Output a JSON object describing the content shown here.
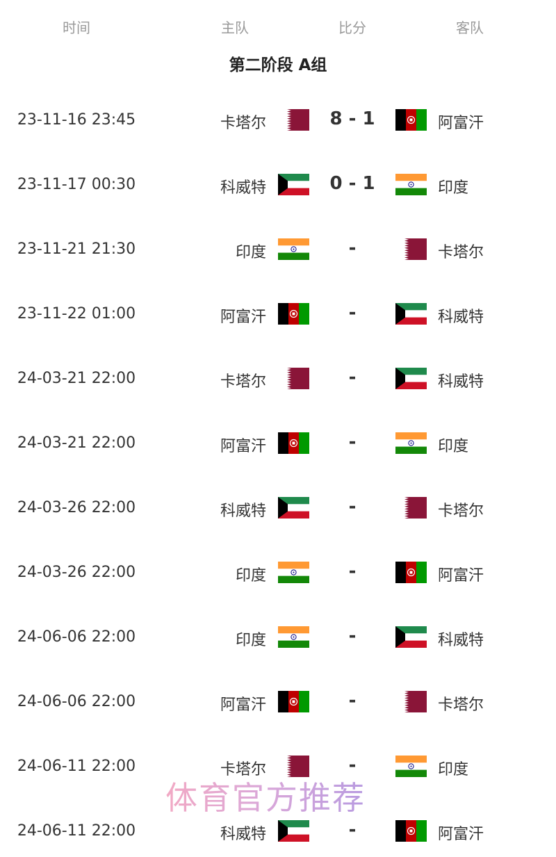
{
  "header": {
    "time": "时间",
    "home": "主队",
    "score": "比分",
    "away": "客队"
  },
  "group_title": "第二阶段 A组",
  "flag_colors": {
    "qatar": "#8a1538",
    "kuwait_green": "#1f8a4c",
    "kuwait_red": "#ce1126",
    "india_saffron": "#ff9933",
    "india_green": "#138808",
    "afghanistan_red": "#be0000",
    "afghanistan_green": "#009900"
  },
  "matches": [
    {
      "time": "23-11-16 23:45",
      "home": "卡塔尔",
      "home_flag": "qatar",
      "score": "8 - 1",
      "away": "阿富汗",
      "away_flag": "afghanistan"
    },
    {
      "time": "23-11-17 00:30",
      "home": "科威特",
      "home_flag": "kuwait",
      "score": "0 - 1",
      "away": "印度",
      "away_flag": "india"
    },
    {
      "time": "23-11-21 21:30",
      "home": "印度",
      "home_flag": "india",
      "score": "-",
      "away": "卡塔尔",
      "away_flag": "qatar"
    },
    {
      "time": "23-11-22 01:00",
      "home": "阿富汗",
      "home_flag": "afghanistan",
      "score": "-",
      "away": "科威特",
      "away_flag": "kuwait"
    },
    {
      "time": "24-03-21 22:00",
      "home": "卡塔尔",
      "home_flag": "qatar",
      "score": "-",
      "away": "科威特",
      "away_flag": "kuwait"
    },
    {
      "time": "24-03-21 22:00",
      "home": "阿富汗",
      "home_flag": "afghanistan",
      "score": "-",
      "away": "印度",
      "away_flag": "india"
    },
    {
      "time": "24-03-26 22:00",
      "home": "科威特",
      "home_flag": "kuwait",
      "score": "-",
      "away": "卡塔尔",
      "away_flag": "qatar"
    },
    {
      "time": "24-03-26 22:00",
      "home": "印度",
      "home_flag": "india",
      "score": "-",
      "away": "阿富汗",
      "away_flag": "afghanistan"
    },
    {
      "time": "24-06-06 22:00",
      "home": "印度",
      "home_flag": "india",
      "score": "-",
      "away": "科威特",
      "away_flag": "kuwait"
    },
    {
      "time": "24-06-06 22:00",
      "home": "阿富汗",
      "home_flag": "afghanistan",
      "score": "-",
      "away": "卡塔尔",
      "away_flag": "qatar"
    },
    {
      "time": "24-06-11 22:00",
      "home": "卡塔尔",
      "home_flag": "qatar",
      "score": "-",
      "away": "印度",
      "away_flag": "india"
    },
    {
      "time": "24-06-11 22:00",
      "home": "科威特",
      "home_flag": "kuwait",
      "score": "-",
      "away": "阿富汗",
      "away_flag": "afghanistan"
    }
  ],
  "watermark": "体育官方推荐"
}
